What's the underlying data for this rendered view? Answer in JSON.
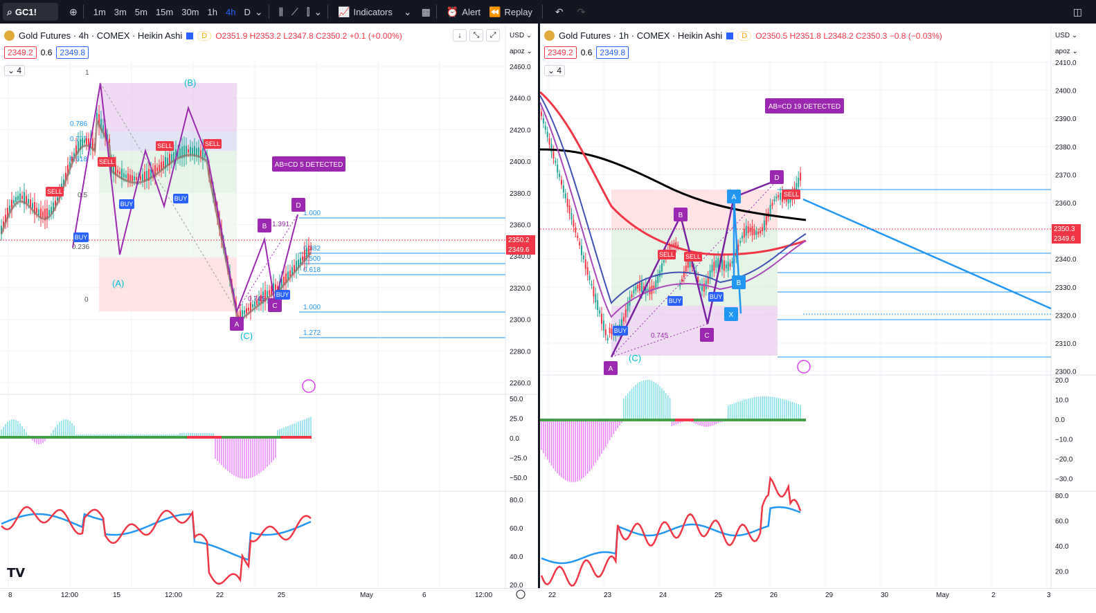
{
  "toolbar": {
    "symbol": "GC1!",
    "timeframes": [
      "1m",
      "3m",
      "5m",
      "15m",
      "30m",
      "1h",
      "4h",
      "D"
    ],
    "active_timeframe": "4h",
    "indicators_label": "Indicators",
    "alert_label": "Alert",
    "replay_label": "Replay"
  },
  "left": {
    "title": "Gold Futures · 4h · COMEX · Heikin Ashi",
    "pill": "D",
    "ohlc": "O2351.9 H2353.2 L2347.8 C2350.2 +0.1 (+0.00%)",
    "bid": "2349.2",
    "spread": "0.6",
    "ask": "2349.8",
    "indicator_count": "4",
    "currency": "USD",
    "scale_mode": "apoz",
    "price_ticks": [
      "2460.0",
      "2440.0",
      "2420.0",
      "2400.0",
      "2380.0",
      "2360.0",
      "2340.0",
      "2320.0",
      "2300.0",
      "2280.0",
      "2260.0"
    ],
    "osc_ticks": [
      "50.0",
      "25.0",
      "0.0",
      "−25.0",
      "−50.0"
    ],
    "rsi_ticks": [
      "80.0",
      "60.0",
      "40.0",
      "20.0"
    ],
    "time_ticks": [
      "8",
      "12:00",
      "15",
      "12:00",
      "22",
      "25",
      "May",
      "6",
      "12:00"
    ],
    "last_price": "2350.2",
    "last_price2": "2349.6",
    "fib_levels": [
      "0.786",
      "0.707",
      "0.618",
      "0.5",
      "0.236",
      "1",
      "0"
    ],
    "fib_right": [
      "1.000",
      "0.382",
      "0.500",
      "0.618",
      "1.000",
      "1.272"
    ],
    "pattern_label": "AB=CD 5 DETECTED",
    "wave_labels": [
      "(A)",
      "(B)",
      "(C)"
    ],
    "points": [
      "A",
      "B",
      "C",
      "D"
    ],
    "ratio_label": "0.745",
    "ratio2": "1.391"
  },
  "right": {
    "title": "Gold Futures · 1h · COMEX · Heikin Ashi",
    "pill": "D",
    "ohlc": "O2350.5 H2351.8 L2348.2 C2350.3 −0.8 (−0.03%)",
    "bid": "2349.2",
    "spread": "0.6",
    "ask": "2349.8",
    "indicator_count": "4",
    "currency": "USD",
    "scale_mode": "apoz",
    "price_ticks": [
      "2410.0",
      "2400.0",
      "2390.0",
      "2380.0",
      "2370.0",
      "2360.0",
      "2350.0",
      "2340.0",
      "2330.0",
      "2320.0",
      "2310.0",
      "2300.0"
    ],
    "osc_ticks": [
      "20.0",
      "10.0",
      "0.0",
      "−10.0",
      "−20.0",
      "−30.0"
    ],
    "rsi_ticks": [
      "80.0",
      "60.0",
      "40.0",
      "20.0"
    ],
    "time_ticks": [
      "22",
      "23",
      "24",
      "25",
      "26",
      "29",
      "30",
      "May",
      "2",
      "3"
    ],
    "last_price": "2350.3",
    "last_price2": "2349.6",
    "pattern_label": "AB=CD 19 DETECTED",
    "points": [
      "A",
      "B",
      "C",
      "D",
      "X"
    ],
    "ratio_label": "0.745",
    "wave_label": "(C)"
  },
  "signals": {
    "buy": "BUY",
    "sell": "SELL"
  },
  "colors": {
    "bg": "#131722",
    "up": "#26a69a",
    "down": "#f23645",
    "purple": "#9c27b0",
    "blue": "#2196f3"
  }
}
